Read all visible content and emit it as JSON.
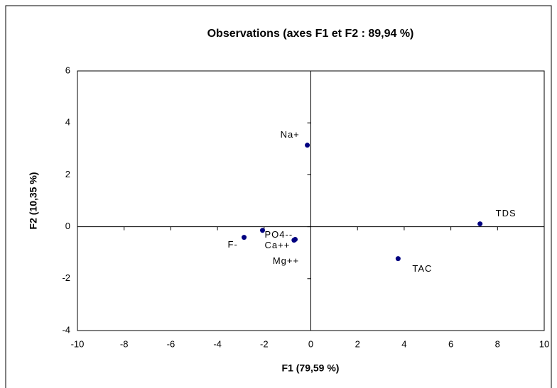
{
  "chart_data": {
    "type": "scatter",
    "title": "Observations (axes F1 et F2 : 89,94 %)",
    "x_label": "F1 (79,59 %)",
    "y_label": "F2 (10,35 %)",
    "color": "#000080",
    "labels": [
      "Na+",
      "TDS",
      "TAC",
      "PO4--",
      "Ca++",
      "F-",
      "Mg++"
    ],
    "x": [
      -0.15,
      7.25,
      3.74,
      -2.07,
      -0.67,
      -2.86,
      -0.72
    ],
    "y": [
      3.14,
      0.11,
      -1.23,
      -0.14,
      -0.49,
      -0.41,
      -0.52
    ],
    "xlim": [
      -10,
      10
    ],
    "xticks": [
      -10,
      -8,
      -6,
      -4,
      -2,
      0,
      2,
      4,
      6,
      8,
      10
    ],
    "ylim": [
      -4,
      6
    ],
    "yticks": [
      -4,
      -2,
      0,
      2,
      4,
      6
    ],
    "grid": false
  }
}
